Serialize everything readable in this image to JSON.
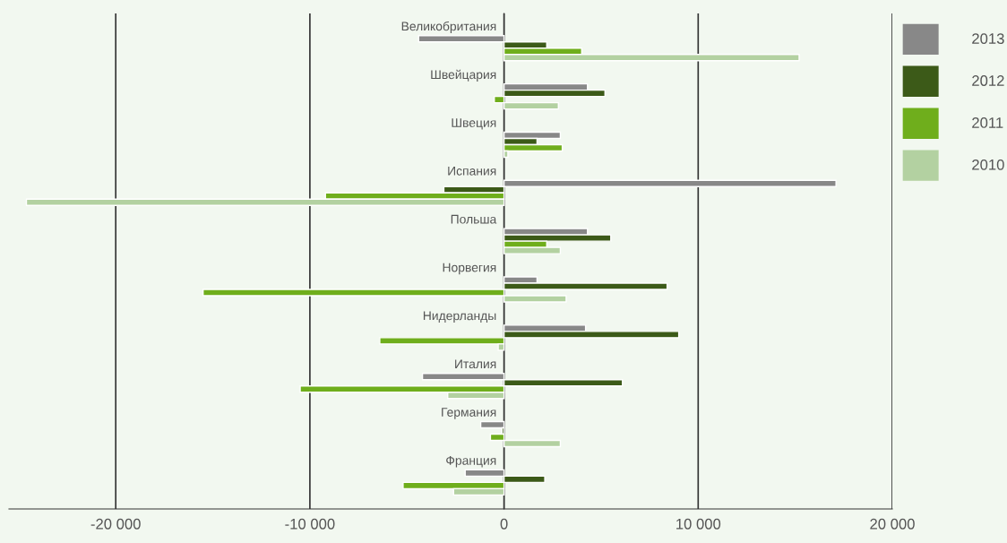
{
  "chart_data": {
    "type": "bar",
    "orientation": "horizontal",
    "categories": [
      "Великобритания",
      "Швейцария",
      "Швеция",
      "Испания",
      "Польша",
      "Норвегия",
      "Нидерланды",
      "Италия",
      "Германия",
      "Франция"
    ],
    "series": [
      {
        "name": "2013",
        "color": "#888888",
        "values": [
          -4400,
          4300,
          2900,
          17100,
          4300,
          1700,
          4200,
          -4200,
          -1200,
          -2000
        ]
      },
      {
        "name": "2012",
        "color": "#3c5a18",
        "values": [
          2200,
          5200,
          1700,
          -3100,
          5500,
          8400,
          9000,
          6100,
          -100,
          2100
        ]
      },
      {
        "name": "2011",
        "color": "#6fae1c",
        "values": [
          4000,
          -500,
          3000,
          -9200,
          2200,
          -15500,
          -6400,
          -10500,
          -700,
          -5200
        ]
      },
      {
        "name": "2010",
        "color": "#b3d1a1",
        "values": [
          15200,
          2800,
          200,
          -24600,
          2900,
          3200,
          -300,
          -2900,
          2900,
          -2600
        ]
      }
    ],
    "xlim": [
      -25500,
      20000
    ],
    "xticks": [
      {
        "value": -20000,
        "label": "-20 000"
      },
      {
        "value": -10000,
        "label": "-10 000"
      },
      0,
      {
        "value": 10000,
        "label": "10 000"
      },
      {
        "value": 20000,
        "label": "20 000"
      }
    ],
    "grid": "x",
    "legend": "top right"
  }
}
